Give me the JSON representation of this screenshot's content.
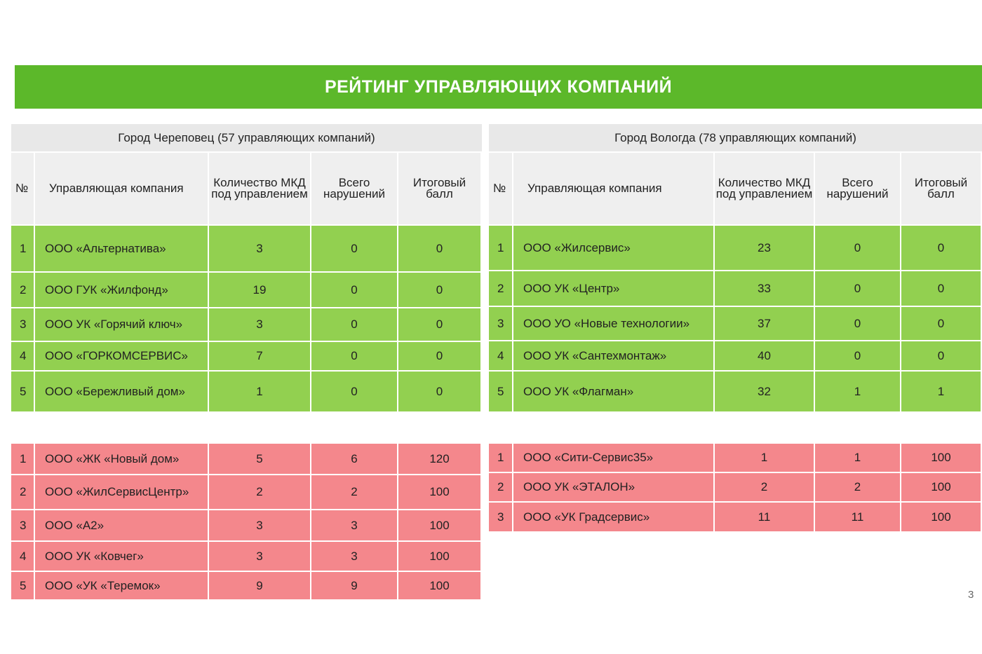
{
  "title": "РЕЙТИНГ УПРАВЛЯЮЩИХ КОМПАНИЙ",
  "tables": [
    {
      "caption": "Город Череповец  (57  управляющих компаний)",
      "columns": [
        "№",
        "Управляющая компания",
        "Количество МКД под управлением",
        "Всего нарушений",
        "Итоговый балл"
      ],
      "top_rows": [
        [
          "1",
          "ООО  «Альтернатива»",
          "3",
          "0",
          "0"
        ],
        [
          "2",
          "ООО ГУК «Жилфонд»",
          "19",
          "0",
          "0"
        ],
        [
          "3",
          "ООО УК «Горячий ключ»",
          "3",
          "0",
          "0"
        ],
        [
          "4",
          "ООО «ГОРКОМСЕРВИС»",
          "7",
          "0",
          "0"
        ],
        [
          "5",
          "ООО «Бережливый дом»",
          "1",
          "0",
          "0"
        ]
      ],
      "bottom_rows": [
        [
          "1",
          "ООО «ЖК «Новый дом»",
          "5",
          "6",
          "120"
        ],
        [
          "2",
          "ООО «ЖилСервисЦентр»",
          "2",
          "2",
          "100"
        ],
        [
          "3",
          "ООО «А2»",
          "3",
          "3",
          "100"
        ],
        [
          "4",
          "ООО УК «Ковчег»",
          "3",
          "3",
          "100"
        ],
        [
          "5",
          "ООО «УК «Теремок»",
          "9",
          "9",
          "100"
        ]
      ]
    },
    {
      "caption": "Город Вологда (78 управляющих компаний)",
      "columns": [
        "№",
        "Управляющая компания",
        "Количество МКД под управлением",
        "Всего нарушений",
        "Итоговый балл"
      ],
      "top_rows": [
        [
          "1",
          "ООО «Жилсервис»",
          "23",
          "0",
          "0"
        ],
        [
          "2",
          "ООО УК «Центр»",
          "33",
          "0",
          "0"
        ],
        [
          "3",
          "ООО УО «Новые технологии»",
          "37",
          "0",
          "0"
        ],
        [
          "4",
          "ООО УК «Сантехмонтаж»",
          "40",
          "0",
          "0"
        ],
        [
          "5",
          "ООО УК «Флагман»",
          "32",
          "1",
          "1"
        ]
      ],
      "bottom_rows": [
        [
          "1",
          "ООО «Сити-Сервис35»",
          "1",
          "1",
          "100"
        ],
        [
          "2",
          "ООО УК «ЭТАЛОН»",
          "2",
          "2",
          "100"
        ],
        [
          "3",
          "ООО «УК Градсервис»",
          "11",
          "11",
          "100"
        ]
      ]
    }
  ],
  "page_number": "3"
}
